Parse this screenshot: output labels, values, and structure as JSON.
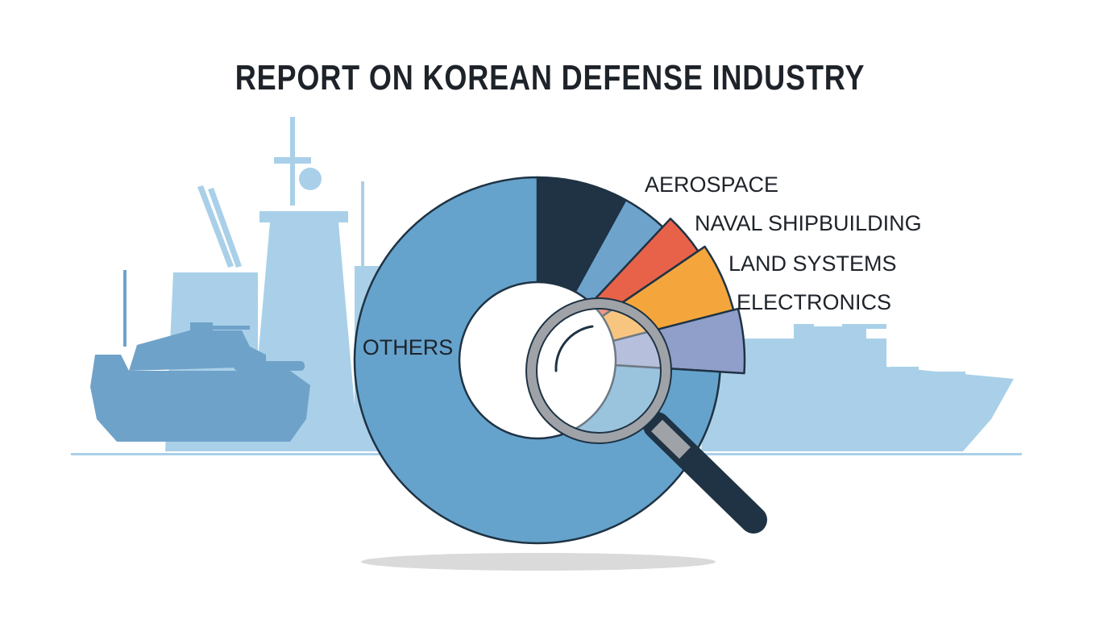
{
  "chart_data": {
    "type": "pie",
    "title": "REPORT ON KOREAN DEFENSE INDUSTRY",
    "slices": [
      {
        "label": "AEROSPACE",
        "value": 8.0,
        "color": "#1f3344"
      },
      {
        "label": "",
        "value": 4.0,
        "color": "#6ea4cc"
      },
      {
        "label": "NAVAL SHIPBUILDING",
        "value": 3.5,
        "color": "#e8624a"
      },
      {
        "label": "LAND SYSTEMS",
        "value": 5.5,
        "color": "#f4a63c"
      },
      {
        "label": "ELECTRONICS",
        "value": 5.0,
        "color": "#8f9fca"
      },
      {
        "label": "OTHERS",
        "value": 74.0,
        "color": "#65a3cc"
      }
    ],
    "legend": "none",
    "grid": false
  },
  "colors": {
    "silhouette": "#a9d0e8",
    "silhouette_dark": "#6fa2c9",
    "outline": "#1f3344",
    "magnifier_rim": "#9fa3a8",
    "magnifier_handle": "#1f3344"
  },
  "icons": {
    "magnifier": "magnifying-glass-icon",
    "tank": "tank-icon",
    "warship": "warship-icon",
    "ship": "ship-icon"
  }
}
